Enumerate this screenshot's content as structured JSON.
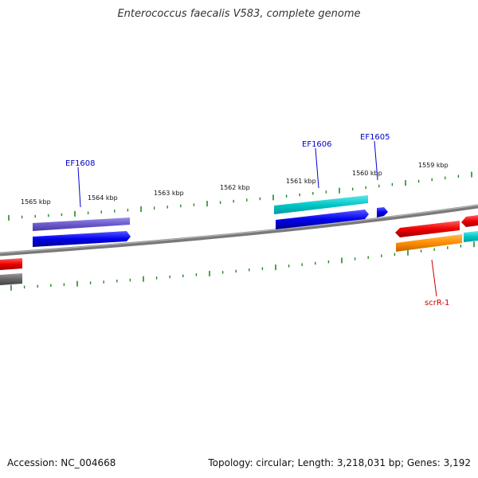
{
  "title": "Enterococcus faecalis V583, complete genome",
  "footer": {
    "accession": "Accession: NC_004668",
    "summary": "Topology: circular; Length: 3,218,031 bp; Genes: 3,192"
  },
  "ticks": [
    "1565 kbp",
    "1564 kbp",
    "1563 kbp",
    "1562 kbp",
    "1561 kbp",
    "1560 kbp",
    "1559 kbp"
  ],
  "gene_labels": [
    "EF1608",
    "EF1606",
    "EF1605",
    "scrR-1"
  ],
  "colors": {
    "backbone": "#808080",
    "tick": "#228b22",
    "label_link": "#0000cc",
    "label_red": "#cc0000",
    "blue": "#0000ee",
    "lavender": "#6a5acd",
    "cyan": "#00c8c8",
    "red": "#ee0000",
    "orange": "#ff8c00",
    "gray": "#666666"
  }
}
